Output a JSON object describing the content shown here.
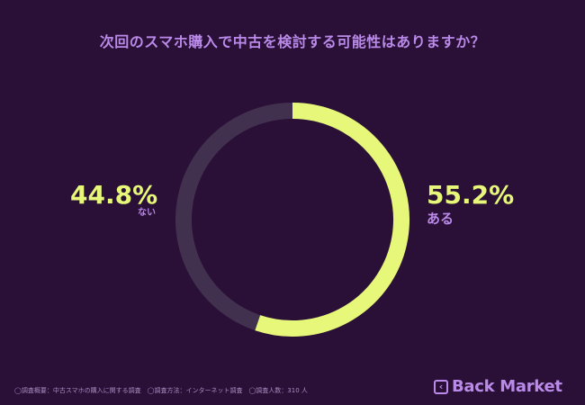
{
  "chart_data": {
    "type": "pie",
    "title": "次回のスマホ購入で中古を検討する可能性はありますか？",
    "slices": [
      {
        "label": "ある",
        "value": 55.2,
        "value_label": "55.2%",
        "color": "#e6f779"
      },
      {
        "label": "ない",
        "value": 44.8,
        "value_label": "44.8%",
        "color": "#42304f"
      }
    ]
  },
  "footnote": "◯調査概要：中古スマホの購入に関する調査　◯調査方法：インターネット調査　◯調査人数：310 人",
  "brand": {
    "name": "Back Market",
    "icon": "back-market-logo-icon"
  },
  "colors": {
    "background": "#2a0f37",
    "accent": "#b98ae8"
  }
}
